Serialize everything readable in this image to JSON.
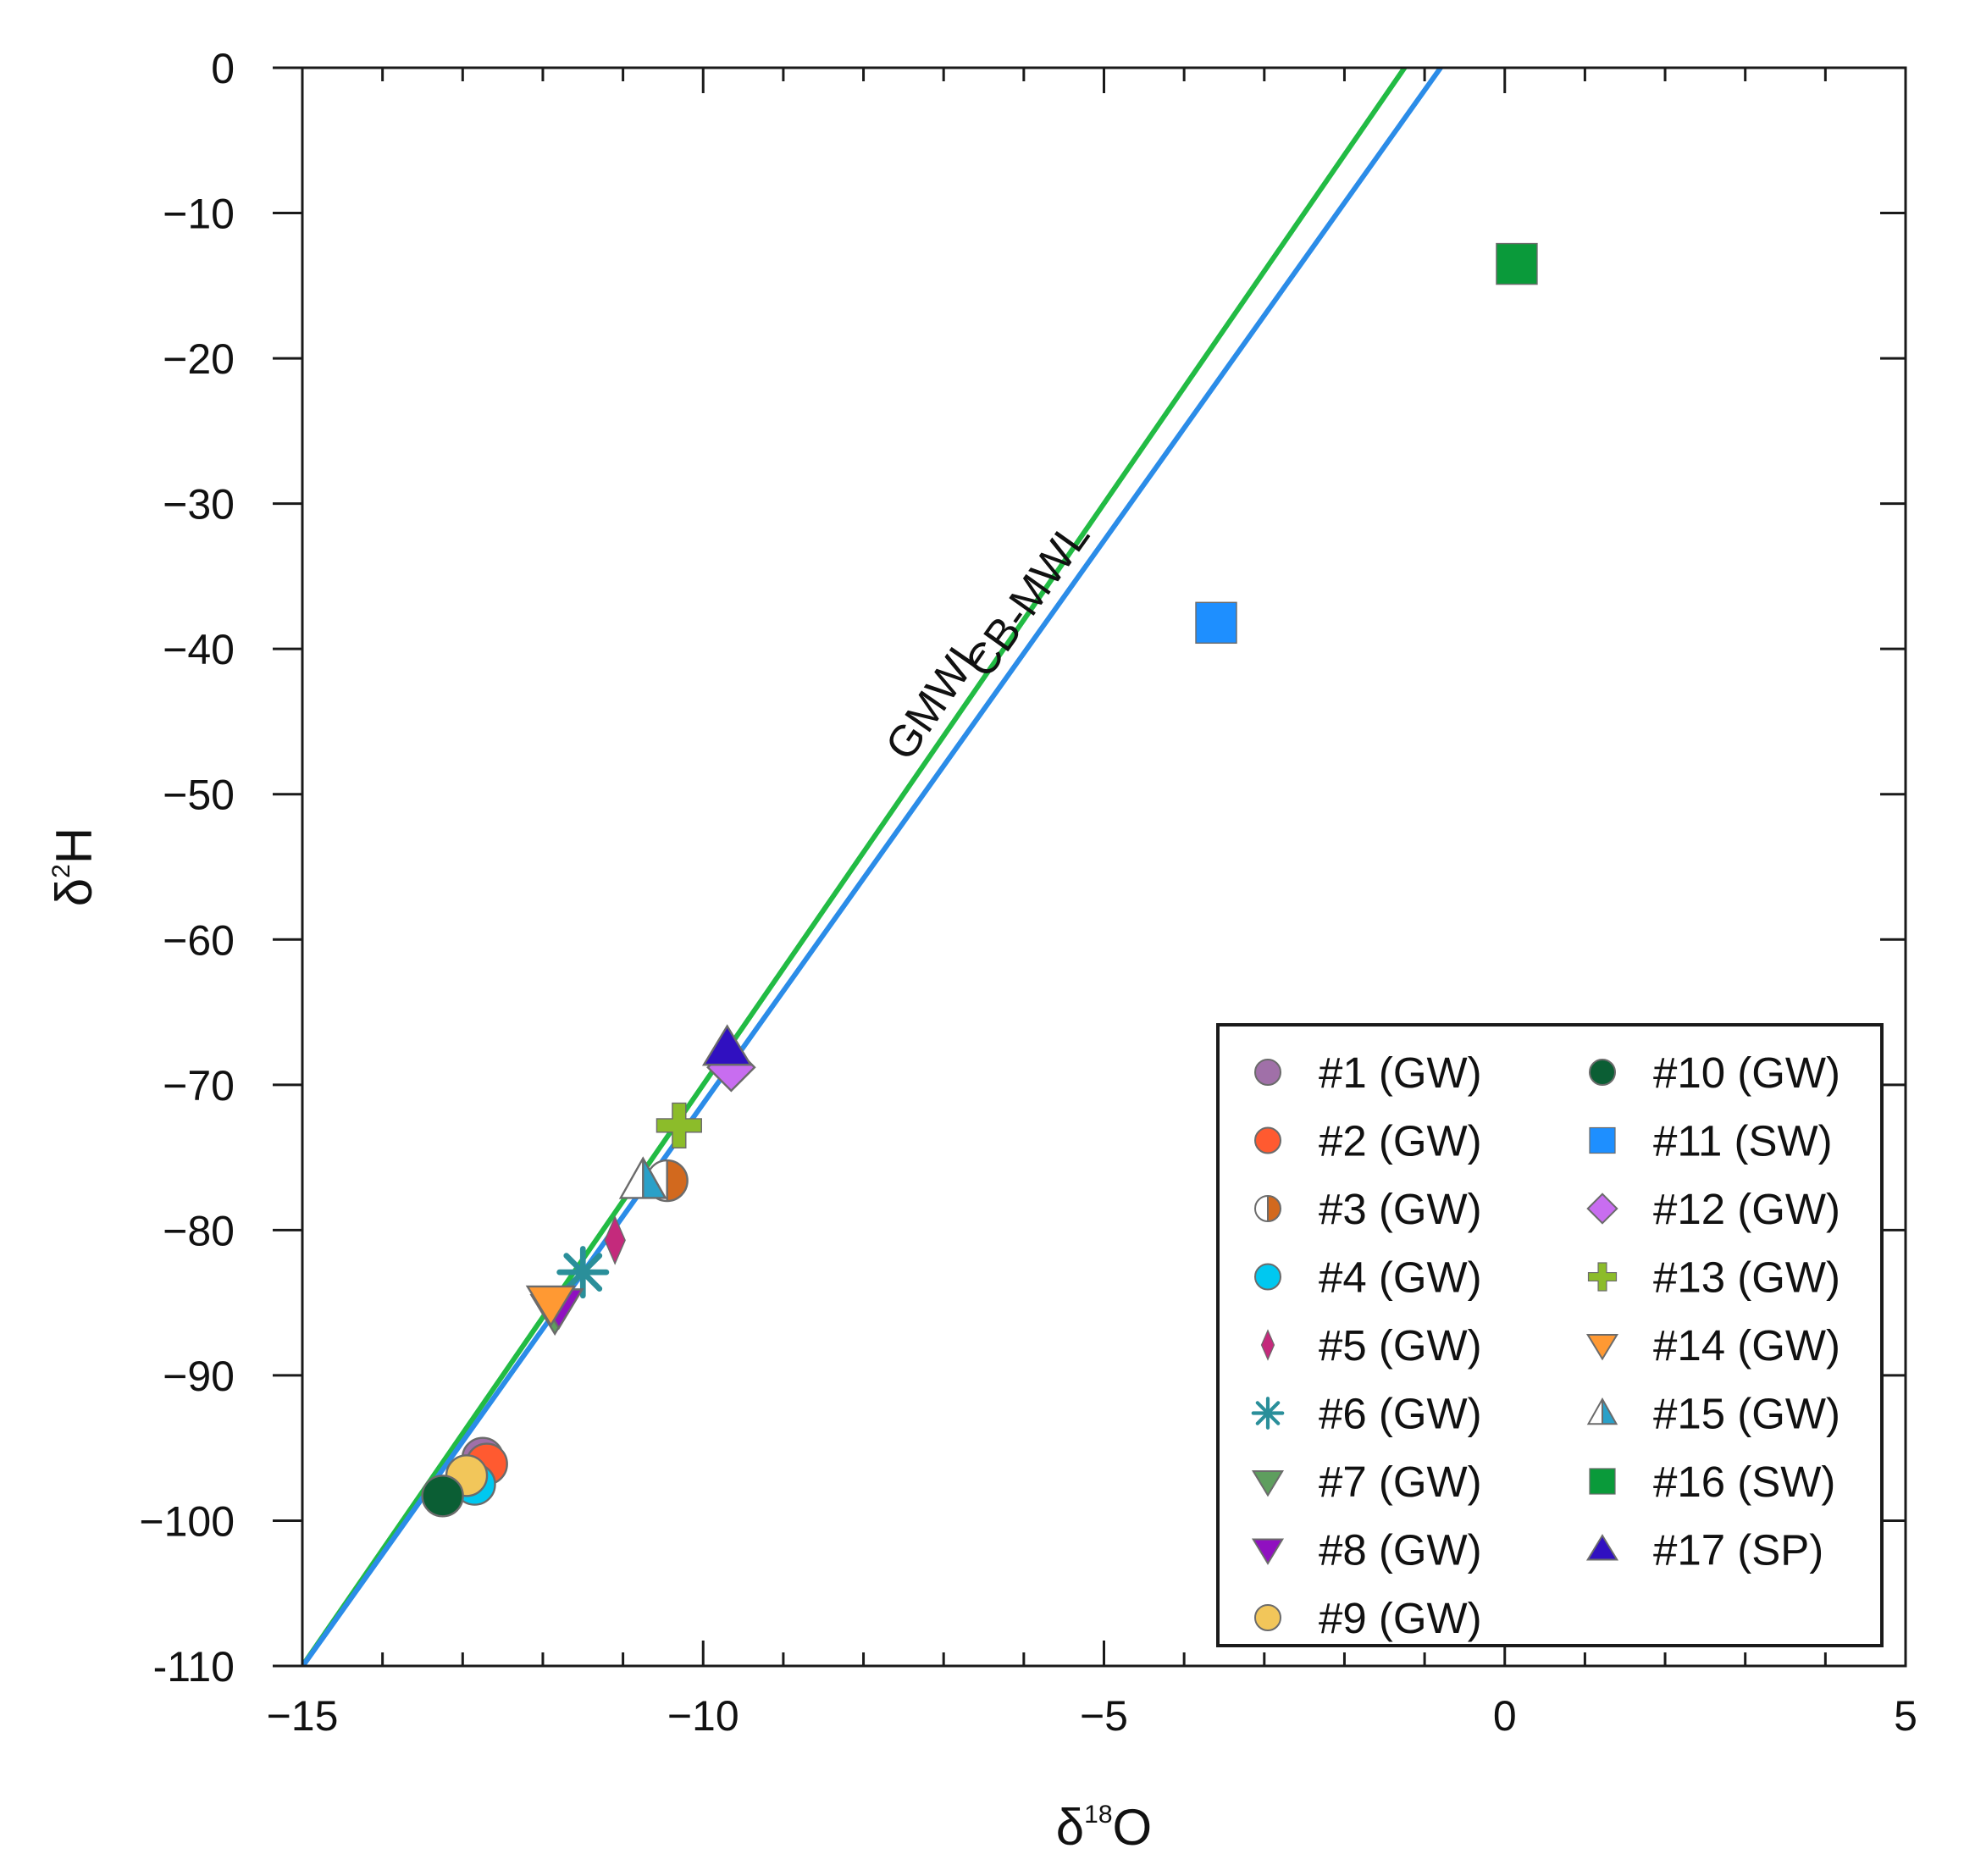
{
  "chart_data": {
    "type": "scatter",
    "xlabel": {
      "main": "δ",
      "sup": "18",
      "tail": "O"
    },
    "ylabel": {
      "main": "δ",
      "sup": "2",
      "tail": "H"
    },
    "xlim": [
      -15,
      5
    ],
    "ylim": [
      -110,
      0
    ],
    "x_ticks": [
      -15,
      -10,
      -5,
      0,
      5
    ],
    "x_tick_labels": [
      "−15",
      "−10",
      "−5",
      "0",
      "5"
    ],
    "x_minor_step": 1,
    "y_ticks": [
      0,
      -10,
      -20,
      -30,
      -40,
      -50,
      -60,
      -70,
      -80,
      -90,
      -100,
      -110
    ],
    "y_tick_labels": [
      "0",
      "−10",
      "−20",
      "−30",
      "−40",
      "−50",
      "−60",
      "−70",
      "−80",
      "−90",
      "−100",
      "-110"
    ],
    "grid": false,
    "legend_position": "bottom-right",
    "lines": [
      {
        "name": "GMWL",
        "label": "GMWL",
        "color": "#22bb44",
        "slope": 8,
        "intercept": 10
      },
      {
        "name": "CB-MWL",
        "label": "CB-MWL",
        "color": "#2b8ce8",
        "slope": 7.75,
        "intercept": 6.2
      }
    ],
    "series": [
      {
        "name": "#1 (GW)",
        "marker": "circle",
        "color": "#a070a8",
        "x": -12.75,
        "y": -95.7
      },
      {
        "name": "#2 (GW)",
        "marker": "circle",
        "color": "#ff5a30",
        "x": -12.7,
        "y": -96.1
      },
      {
        "name": "#3 (GW)",
        "marker": "half-circle",
        "color": "#d2691e",
        "x": -10.45,
        "y": -76.6
      },
      {
        "name": "#4 (GW)",
        "marker": "circle",
        "color": "#00c8f0",
        "x": -12.85,
        "y": -97.5
      },
      {
        "name": "#5 (GW)",
        "marker": "thin-diamond",
        "color": "#c42a7c",
        "x": -11.1,
        "y": -80.7
      },
      {
        "name": "#6 (GW)",
        "marker": "star",
        "color": "#2a8f9a",
        "x": -11.5,
        "y": -82.9
      },
      {
        "name": "#7 (GW)",
        "marker": "triangle-down",
        "color": "#5e9e5e",
        "x": -11.85,
        "y": -85.6
      },
      {
        "name": "#8 (GW)",
        "marker": "triangle-down",
        "color": "#9010c0",
        "x": -11.8,
        "y": -85.2
      },
      {
        "name": "#9 (GW)",
        "marker": "circle",
        "color": "#f2c65a",
        "x": -12.95,
        "y": -96.9
      },
      {
        "name": "#10 (GW)",
        "marker": "circle",
        "color": "#0b5e34",
        "x": -13.25,
        "y": -98.3
      },
      {
        "name": "#11 (SW)",
        "marker": "square",
        "color": "#1e8fff",
        "x": -3.6,
        "y": -38.2
      },
      {
        "name": "#12 (GW)",
        "marker": "diamond",
        "color": "#c86df0",
        "x": -9.65,
        "y": -68.8
      },
      {
        "name": "#13 (GW)",
        "marker": "plus",
        "color": "#8cbc2a",
        "x": -10.3,
        "y": -72.8
      },
      {
        "name": "#14 (GW)",
        "marker": "triangle-down",
        "color": "#ff9933",
        "x": -11.9,
        "y": -85.0
      },
      {
        "name": "#15 (GW)",
        "marker": "half-triangle",
        "color": "#2aa0c8",
        "x": -10.75,
        "y": -76.6
      },
      {
        "name": "#16 (SW)",
        "marker": "square",
        "color": "#0a9a3a",
        "x": 0.15,
        "y": -13.5
      },
      {
        "name": "#17 (SP)",
        "marker": "triangle-up",
        "color": "#3010c0",
        "x": -9.7,
        "y": -67.5
      }
    ]
  }
}
